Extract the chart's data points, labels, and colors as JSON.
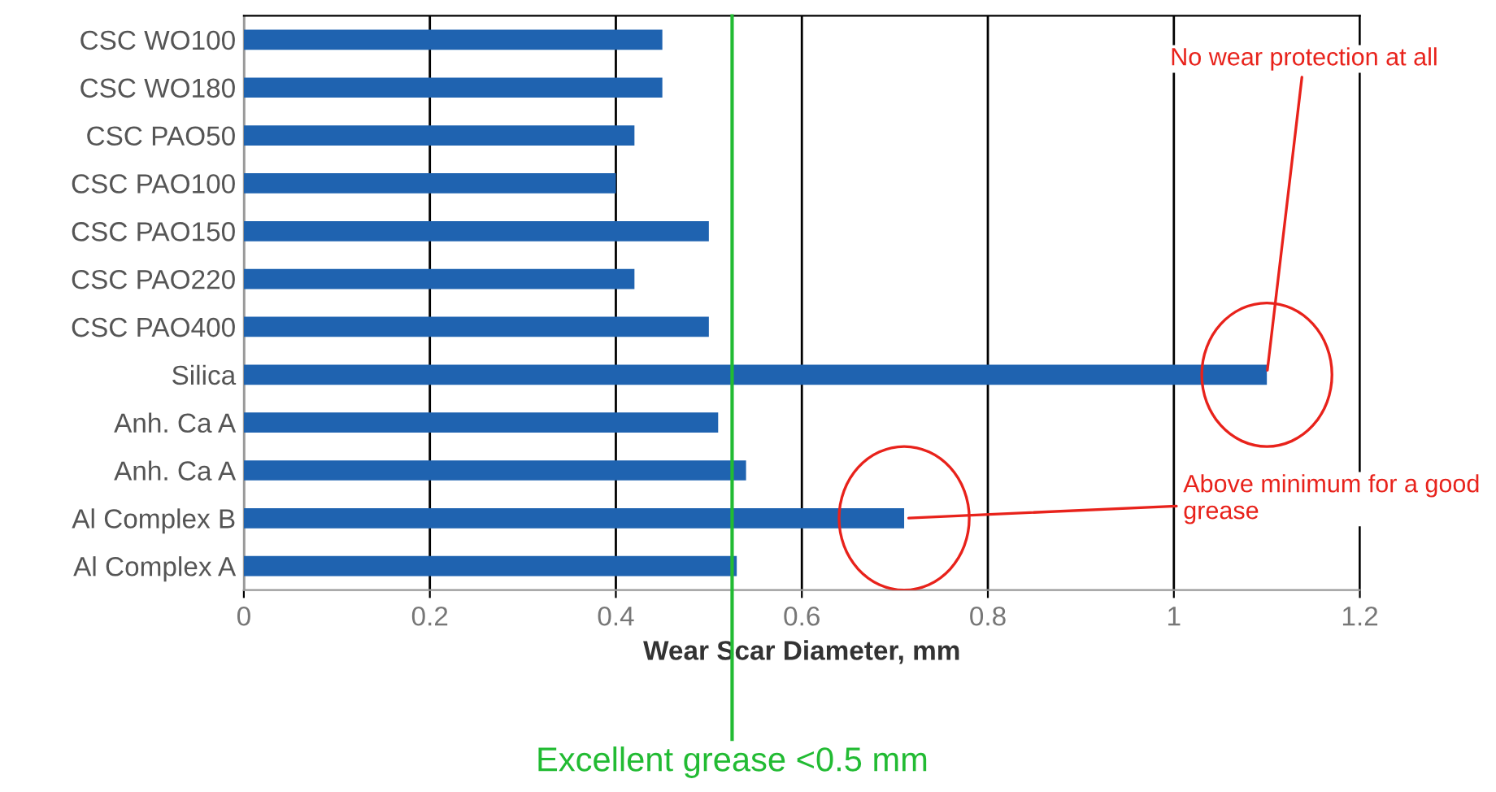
{
  "chart_data": {
    "type": "bar",
    "orientation": "horizontal",
    "xlabel": "Wear Scar Diameter, mm",
    "categories": [
      "CSC WO100",
      "CSC WO180",
      "CSC PAO50",
      "CSC PAO100",
      "CSC PAO150",
      "CSC PAO220",
      "CSC PAO400",
      "Silica",
      "Anh. Ca A",
      "Anh. Ca A",
      "Al Complex B",
      "Al Complex A"
    ],
    "values": [
      0.45,
      0.45,
      0.42,
      0.4,
      0.5,
      0.42,
      0.5,
      1.1,
      0.51,
      0.54,
      0.71,
      0.53
    ],
    "color": "#1f63b0",
    "xlim": [
      0,
      1.2
    ],
    "xticks": [
      0,
      0.2,
      0.4,
      0.6,
      0.8,
      1,
      1.2
    ],
    "grid": "x",
    "ref_lines": [
      {
        "axis": "x",
        "value": 0.525,
        "label": "Excellent grease <0.5 mm",
        "color": "#22bb33"
      }
    ],
    "annotations": [
      {
        "text": "No wear protection at all",
        "x": 1.1,
        "y": "Silica"
      },
      {
        "text": "Above minimum for a good\ngrease",
        "x": 0.71,
        "y": "Al Complex B"
      }
    ]
  }
}
